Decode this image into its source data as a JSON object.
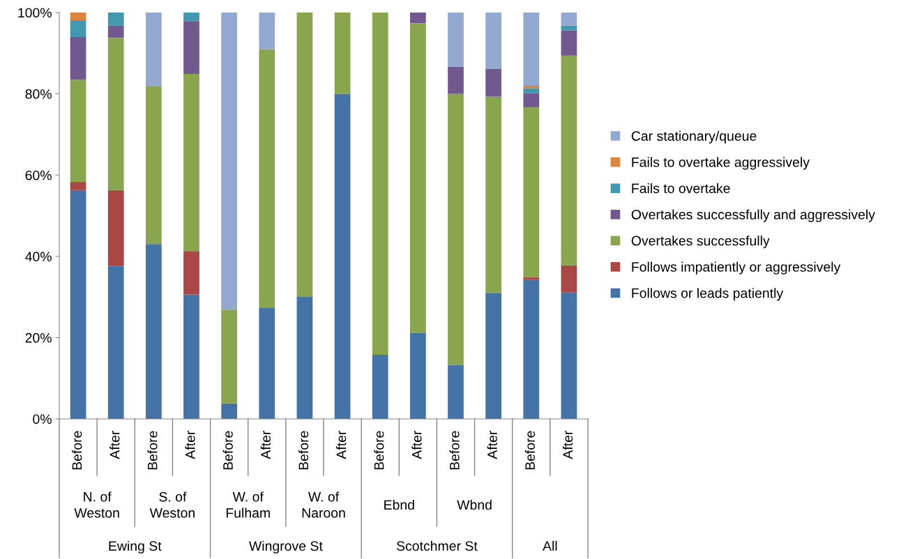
{
  "chart_data": {
    "type": "bar",
    "stacked": true,
    "categories": [
      "Before",
      "After",
      "Before",
      "After",
      "Before",
      "After",
      "Before",
      "After",
      "Before",
      "After",
      "Before",
      "After",
      "Before",
      "After"
    ],
    "series": [
      {
        "name": "Follows or leads patiently",
        "color": "#4572a7",
        "values": [
          56.3,
          37.6,
          43.0,
          30.6,
          3.8,
          27.4,
          30.0,
          80.0,
          15.8,
          21.1,
          13.3,
          31.0,
          34.2,
          31.1
        ]
      },
      {
        "name": "Follows impatiently or aggressively",
        "color": "#aa4643",
        "values": [
          2.0,
          18.7,
          0,
          10.7,
          0,
          0,
          0,
          0,
          0,
          0,
          0,
          0,
          0.6,
          6.7
        ]
      },
      {
        "name": "Overtakes successfully",
        "color": "#89a54e",
        "values": [
          25.2,
          37.5,
          38.8,
          43.6,
          23.1,
          63.6,
          70.0,
          20.0,
          84.2,
          76.3,
          66.7,
          48.3,
          41.9,
          51.6
        ]
      },
      {
        "name": "Overtakes successfully and aggressively",
        "color": "#71588f",
        "values": [
          10.5,
          3.0,
          0,
          13.0,
          0,
          0,
          0,
          0,
          0,
          2.6,
          6.7,
          6.9,
          3.5,
          6.2
        ]
      },
      {
        "name": "Fails to overtake",
        "color": "#4198af",
        "values": [
          4.1,
          3.2,
          0,
          2.1,
          0,
          0,
          0,
          0,
          0,
          0,
          0,
          0,
          1.2,
          1.2
        ]
      },
      {
        "name": "Fails to overtake aggressively",
        "color": "#db843d",
        "values": [
          1.9,
          0,
          0,
          0,
          0,
          0,
          0,
          0,
          0,
          0,
          0,
          0,
          0.6,
          0
        ]
      },
      {
        "name": "Car stationary/queue",
        "color": "#93a9cf",
        "values": [
          0,
          0,
          18.2,
          0,
          73.1,
          9.0,
          0,
          0,
          0,
          0,
          13.3,
          13.8,
          18.0,
          3.2
        ]
      }
    ],
    "ylim": [
      0,
      100
    ],
    "yticks": [
      {
        "value": 0,
        "label": "0%"
      },
      {
        "value": 20,
        "label": "20%"
      },
      {
        "value": 40,
        "label": "40%"
      },
      {
        "value": 60,
        "label": "60%"
      },
      {
        "value": 80,
        "label": "80%"
      },
      {
        "value": 100,
        "label": "100%"
      }
    ],
    "grid": false,
    "legend": "right",
    "annotations": [
      "N. of\nWeston",
      "S. of\nWeston",
      "W. of\nFulham",
      "W. of\nNaroon",
      "Ebnd",
      "Wbnd",
      "Ewing St",
      "Wingrove St",
      "Scotchmer St",
      "All"
    ]
  }
}
